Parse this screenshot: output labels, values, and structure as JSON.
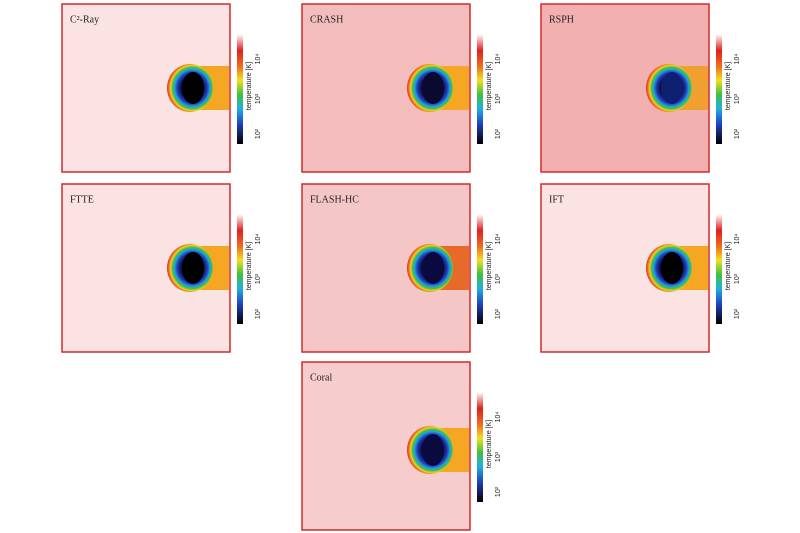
{
  "panels": [
    {
      "label": "C²-Ray"
    },
    {
      "label": "CRASH"
    },
    {
      "label": "RSPH"
    },
    {
      "label": "FTTE"
    },
    {
      "label": "FLASH-HC"
    },
    {
      "label": "IFT"
    },
    {
      "label": "Coral"
    }
  ],
  "colorbar": {
    "label": "temperature [K]",
    "ticks": [
      "10⁴",
      "10³",
      "10²"
    ]
  }
}
